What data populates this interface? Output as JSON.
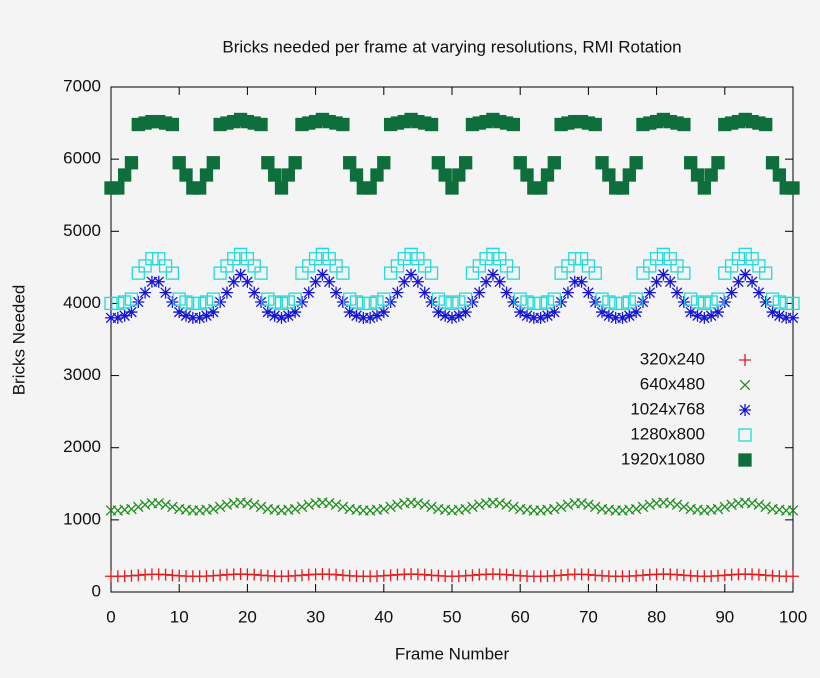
{
  "chart_data": {
    "type": "scatter",
    "title": "Bricks needed per frame at varying resolutions, RMI Rotation",
    "x_label": "Frame Number",
    "y_label": "Bricks Needed",
    "xlim": [
      0,
      100
    ],
    "xticks": [
      0,
      10,
      20,
      30,
      40,
      50,
      60,
      70,
      80,
      90,
      100
    ],
    "ylim": [
      0,
      7000
    ],
    "yticks": [
      0,
      1000,
      2000,
      3000,
      4000,
      5000,
      6000,
      7000
    ],
    "grid": false,
    "legend": "right",
    "x": [
      0,
      1,
      2,
      3,
      4,
      5,
      6,
      7,
      8,
      9,
      10,
      11,
      12,
      13,
      14,
      15,
      16,
      17,
      18,
      19,
      20,
      21,
      22,
      23,
      24,
      25,
      26,
      27,
      28,
      29,
      30,
      31,
      32,
      33,
      34,
      35,
      36,
      37,
      38,
      39,
      40,
      41,
      42,
      43,
      44,
      45,
      46,
      47,
      48,
      49,
      50,
      51,
      52,
      53,
      54,
      55,
      56,
      57,
      58,
      59,
      60,
      61,
      62,
      63,
      64,
      65,
      66,
      67,
      68,
      69,
      70,
      71,
      72,
      73,
      74,
      75,
      76,
      77,
      78,
      79,
      80,
      81,
      82,
      83,
      84,
      85,
      86,
      87,
      88,
      89,
      90,
      91,
      92,
      93,
      94,
      95,
      96,
      97,
      98,
      99,
      100
    ],
    "series": [
      {
        "name": "320x240",
        "color": "#e41a1c",
        "marker": "plus",
        "values": [
          218,
          218,
          220,
          225,
          232,
          240,
          245,
          245,
          240,
          232,
          225,
          220,
          218,
          218,
          220,
          225,
          232,
          240,
          245,
          250,
          245,
          240,
          232,
          225,
          220,
          218,
          220,
          225,
          232,
          240,
          245,
          250,
          245,
          240,
          232,
          225,
          220,
          218,
          218,
          220,
          225,
          232,
          240,
          245,
          250,
          245,
          240,
          232,
          225,
          220,
          218,
          220,
          225,
          232,
          240,
          245,
          250,
          245,
          240,
          232,
          225,
          220,
          218,
          218,
          220,
          225,
          232,
          240,
          245,
          245,
          240,
          232,
          225,
          220,
          218,
          218,
          220,
          225,
          232,
          240,
          245,
          250,
          245,
          240,
          232,
          225,
          220,
          218,
          220,
          225,
          232,
          240,
          245,
          250,
          245,
          240,
          232,
          225,
          220,
          218,
          218
        ]
      },
      {
        "name": "640x480",
        "color": "#1f8f1f",
        "marker": "cross",
        "values": [
          1130,
          1130,
          1140,
          1150,
          1180,
          1210,
          1230,
          1230,
          1210,
          1180,
          1150,
          1140,
          1130,
          1130,
          1140,
          1150,
          1180,
          1210,
          1230,
          1240,
          1230,
          1210,
          1180,
          1150,
          1140,
          1130,
          1140,
          1150,
          1180,
          1210,
          1230,
          1240,
          1230,
          1210,
          1180,
          1150,
          1140,
          1130,
          1130,
          1140,
          1150,
          1180,
          1210,
          1230,
          1240,
          1230,
          1210,
          1180,
          1150,
          1140,
          1130,
          1140,
          1150,
          1180,
          1210,
          1230,
          1240,
          1230,
          1210,
          1180,
          1150,
          1140,
          1130,
          1130,
          1140,
          1150,
          1180,
          1210,
          1230,
          1230,
          1210,
          1180,
          1150,
          1140,
          1130,
          1130,
          1140,
          1150,
          1180,
          1210,
          1230,
          1240,
          1230,
          1210,
          1180,
          1150,
          1140,
          1130,
          1140,
          1150,
          1180,
          1210,
          1230,
          1240,
          1230,
          1210,
          1180,
          1150,
          1140,
          1130,
          1130
        ]
      },
      {
        "name": "1024x768",
        "color": "#1515d8",
        "marker": "star",
        "values": [
          3800,
          3800,
          3830,
          3880,
          4020,
          4150,
          4300,
          4300,
          4150,
          4020,
          3880,
          3830,
          3800,
          3800,
          3830,
          3880,
          4020,
          4150,
          4300,
          4400,
          4300,
          4150,
          4020,
          3880,
          3830,
          3800,
          3830,
          3880,
          4020,
          4150,
          4300,
          4400,
          4300,
          4150,
          4020,
          3880,
          3830,
          3800,
          3800,
          3830,
          3880,
          4020,
          4150,
          4300,
          4400,
          4300,
          4150,
          4020,
          3880,
          3830,
          3800,
          3830,
          3880,
          4020,
          4150,
          4300,
          4400,
          4300,
          4150,
          4020,
          3880,
          3830,
          3800,
          3800,
          3830,
          3880,
          4020,
          4150,
          4300,
          4300,
          4150,
          4020,
          3880,
          3830,
          3800,
          3800,
          3830,
          3880,
          4020,
          4150,
          4300,
          4400,
          4300,
          4150,
          4020,
          3880,
          3830,
          3800,
          3830,
          3880,
          4020,
          4150,
          4300,
          4400,
          4300,
          4150,
          4020,
          3880,
          3830,
          3800,
          3800
        ]
      },
      {
        "name": "1280x800",
        "color": "#22dada",
        "marker": "square-open",
        "values": [
          4000,
          4000,
          4020,
          4060,
          4420,
          4520,
          4620,
          4620,
          4520,
          4420,
          4060,
          4020,
          4000,
          4000,
          4020,
          4060,
          4420,
          4520,
          4620,
          4680,
          4620,
          4520,
          4420,
          4060,
          4020,
          4000,
          4020,
          4060,
          4420,
          4520,
          4620,
          4680,
          4620,
          4520,
          4420,
          4060,
          4020,
          4000,
          4000,
          4020,
          4060,
          4420,
          4520,
          4620,
          4680,
          4620,
          4520,
          4420,
          4060,
          4020,
          4000,
          4020,
          4060,
          4420,
          4520,
          4620,
          4680,
          4620,
          4520,
          4420,
          4060,
          4020,
          4000,
          4000,
          4020,
          4060,
          4420,
          4520,
          4620,
          4620,
          4520,
          4420,
          4060,
          4020,
          4000,
          4000,
          4020,
          4060,
          4420,
          4520,
          4620,
          4680,
          4620,
          4520,
          4420,
          4060,
          4020,
          4000,
          4020,
          4060,
          4420,
          4520,
          4620,
          4680,
          4620,
          4520,
          4420,
          4060,
          4020,
          4000,
          4000
        ]
      },
      {
        "name": "1920x1080",
        "color": "#0e6e3c",
        "marker": "square",
        "values": [
          5600,
          5600,
          5780,
          5950,
          6480,
          6500,
          6520,
          6520,
          6500,
          6480,
          5950,
          5780,
          5600,
          5600,
          5780,
          5950,
          6480,
          6500,
          6520,
          6550,
          6520,
          6500,
          6480,
          5950,
          5780,
          5600,
          5780,
          5950,
          6480,
          6500,
          6520,
          6550,
          6520,
          6500,
          6480,
          5950,
          5780,
          5600,
          5600,
          5780,
          5950,
          6480,
          6500,
          6520,
          6550,
          6520,
          6500,
          6480,
          5950,
          5780,
          5600,
          5780,
          5950,
          6480,
          6500,
          6520,
          6550,
          6520,
          6500,
          6480,
          5950,
          5780,
          5600,
          5600,
          5780,
          5950,
          6480,
          6500,
          6520,
          6520,
          6500,
          6480,
          5950,
          5780,
          5600,
          5600,
          5780,
          5950,
          6480,
          6500,
          6520,
          6550,
          6520,
          6500,
          6480,
          5950,
          5780,
          5600,
          5780,
          5950,
          6480,
          6500,
          6520,
          6550,
          6520,
          6500,
          6480,
          5950,
          5780,
          5600,
          5600
        ]
      }
    ]
  }
}
